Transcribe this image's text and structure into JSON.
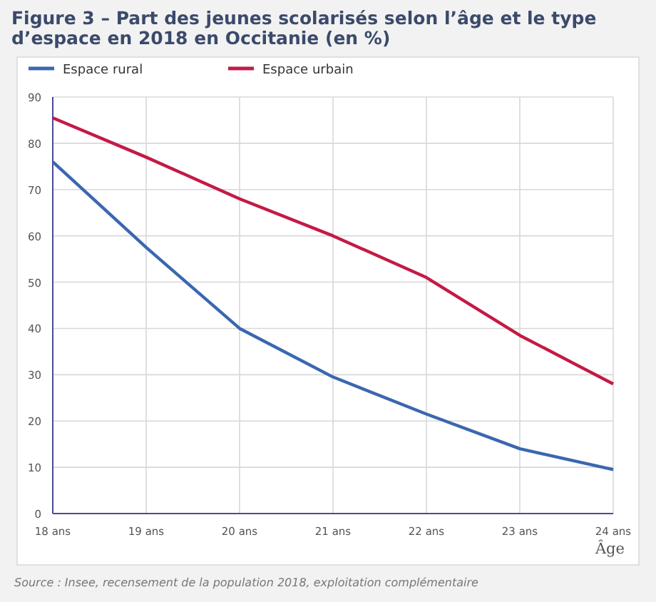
{
  "chart_data": {
    "type": "line",
    "title": "Figure 3 – Part des jeunes scolarisés selon l’âge et le type d’espace en 2018 en Occitanie (en %)",
    "xlabel": "Âge",
    "categories": [
      "18 ans",
      "19 ans",
      "20 ans",
      "21 ans",
      "22 ans",
      "23 ans",
      "24 ans"
    ],
    "series": [
      {
        "name": "Espace rural",
        "color": "#3b67b0",
        "values": [
          76,
          57.5,
          40,
          29.5,
          21.5,
          14,
          9.5
        ]
      },
      {
        "name": "Espace urbain",
        "color": "#c41a45",
        "values": [
          85.5,
          77,
          68,
          60,
          51,
          38.5,
          28
        ]
      }
    ],
    "ylim": [
      0,
      90
    ],
    "yticks": [
      0,
      10,
      20,
      30,
      40,
      50,
      60,
      70,
      80,
      90
    ],
    "grid": true,
    "legend": "top left",
    "marker": "none",
    "line_style": "solid",
    "annotations": [
      "Source : Insee, recensement de la population 2018, exploitation complémentaire"
    ]
  }
}
